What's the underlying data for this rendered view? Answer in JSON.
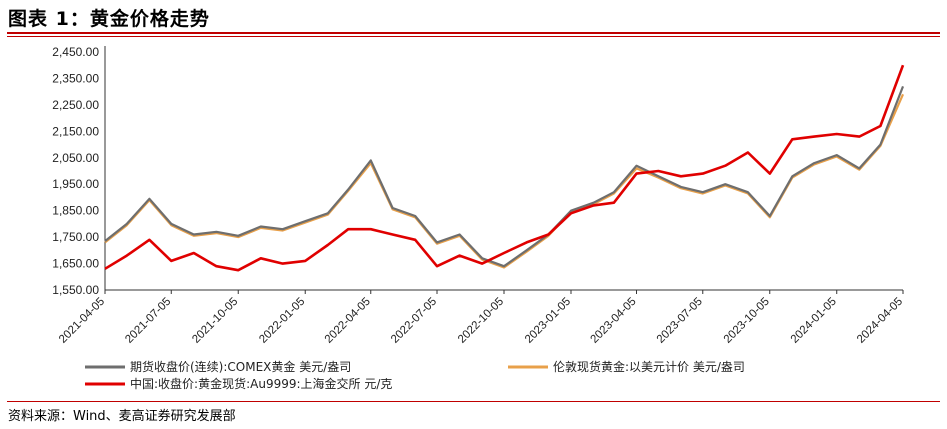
{
  "header": {
    "title": "图表 1：黄金价格走势"
  },
  "footer": {
    "source": "资料来源：Wind、麦高证券研究发展部"
  },
  "chart_data": {
    "type": "line",
    "title": "",
    "xlabel": "",
    "ylabel": "",
    "ylim": [
      1550,
      2450
    ],
    "yticks": [
      "2,450.00",
      "2,350.00",
      "2,250.00",
      "2,150.00",
      "2,050.00",
      "1,950.00",
      "1,850.00",
      "1,750.00",
      "1,650.00",
      "1,550.00"
    ],
    "ytick_values": [
      2450,
      2350,
      2250,
      2150,
      2050,
      1950,
      1850,
      1750,
      1650,
      1550
    ],
    "xticks": [
      "2021-04-05",
      "2021-07-05",
      "2021-10-05",
      "2022-01-05",
      "2022-04-05",
      "2022-07-05",
      "2022-10-05",
      "2023-01-05",
      "2023-04-05",
      "2023-07-05",
      "2023-10-05",
      "2024-01-05",
      "2024-04-05"
    ],
    "x": [
      "2021-04-05",
      "2021-05-05",
      "2021-06-05",
      "2021-07-05",
      "2021-08-05",
      "2021-09-05",
      "2021-10-05",
      "2021-11-05",
      "2021-12-05",
      "2022-01-05",
      "2022-02-05",
      "2022-03-05",
      "2022-04-05",
      "2022-05-05",
      "2022-06-05",
      "2022-07-05",
      "2022-08-05",
      "2022-09-05",
      "2022-10-05",
      "2022-11-05",
      "2022-12-05",
      "2023-01-05",
      "2023-02-05",
      "2023-03-05",
      "2023-04-05",
      "2023-05-05",
      "2023-06-05",
      "2023-07-05",
      "2023-08-05",
      "2023-09-05",
      "2023-10-05",
      "2023-11-05",
      "2023-12-05",
      "2024-01-05",
      "2024-02-05",
      "2024-03-05",
      "2024-04-05"
    ],
    "series": [
      {
        "name": "期货收盘价(连续):COMEX黄金 美元/盎司",
        "color": "#6e6e6e",
        "values": [
          1735,
          1800,
          1895,
          1800,
          1760,
          1770,
          1755,
          1790,
          1780,
          1810,
          1840,
          1930,
          2040,
          1860,
          1830,
          1730,
          1760,
          1670,
          1640,
          1700,
          1760,
          1850,
          1880,
          1920,
          2020,
          1980,
          1940,
          1920,
          1950,
          1920,
          1830,
          1980,
          2030,
          2060,
          2010,
          2100,
          2320
        ]
      },
      {
        "name": "伦敦现货黄金:以美元计价 美元/盎司",
        "color": "#e8a04a",
        "values": [
          1730,
          1795,
          1890,
          1795,
          1755,
          1765,
          1750,
          1785,
          1775,
          1805,
          1835,
          1925,
          2030,
          1855,
          1825,
          1725,
          1755,
          1665,
          1635,
          1695,
          1755,
          1845,
          1875,
          1915,
          2010,
          1975,
          1935,
          1915,
          1945,
          1915,
          1825,
          1975,
          2025,
          2055,
          2005,
          2095,
          2290
        ]
      },
      {
        "name": "中国:收盘价:黄金现货:Au9999:上海金交所 元/克",
        "color": "#e00000",
        "values": [
          1630,
          1680,
          1740,
          1660,
          1690,
          1640,
          1625,
          1670,
          1650,
          1660,
          1720,
          1780,
          1780,
          1760,
          1740,
          1640,
          1680,
          1650,
          1690,
          1730,
          1760,
          1840,
          1870,
          1880,
          1990,
          2000,
          1980,
          1990,
          2020,
          2070,
          1990,
          2120,
          2130,
          2140,
          2130,
          2170,
          2400
        ]
      }
    ],
    "legend": [
      "期货收盘价(连续):COMEX黄金 美元/盎司",
      "伦敦现货黄金:以美元计价 美元/盎司",
      "中国:收盘价:黄金现货:Au9999:上海金交所 元/克"
    ],
    "legend_placement": "bottom",
    "grid": false
  }
}
